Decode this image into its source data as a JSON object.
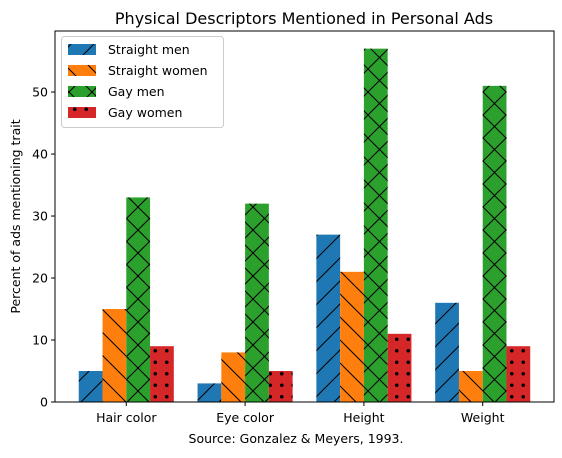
{
  "chart_data": {
    "type": "bar",
    "title": "Physical Descriptors Mentioned in Personal Ads",
    "xlabel": "Source: Gonzalez & Meyers, 1993.",
    "ylabel": "Percent of ads mentioning trait",
    "categories": [
      "Hair color",
      "Eye color",
      "Height",
      "Weight"
    ],
    "series": [
      {
        "name": "Straight men",
        "values": [
          5,
          3,
          27,
          16
        ],
        "color": "#1f77b4",
        "hatch": "/"
      },
      {
        "name": "Straight women",
        "values": [
          15,
          8,
          21,
          5
        ],
        "color": "#ff7f0e",
        "hatch": "\\"
      },
      {
        "name": "Gay men",
        "values": [
          33,
          32,
          57,
          51
        ],
        "color": "#2ca02c",
        "hatch": "x"
      },
      {
        "name": "Gay women",
        "values": [
          9,
          5,
          11,
          9
        ],
        "color": "#d62728",
        "hatch": "."
      }
    ],
    "ylim": [
      0,
      59.85
    ],
    "yticks": [
      0,
      10,
      20,
      30,
      40,
      50
    ],
    "legend": "top-left",
    "grid": false
  }
}
